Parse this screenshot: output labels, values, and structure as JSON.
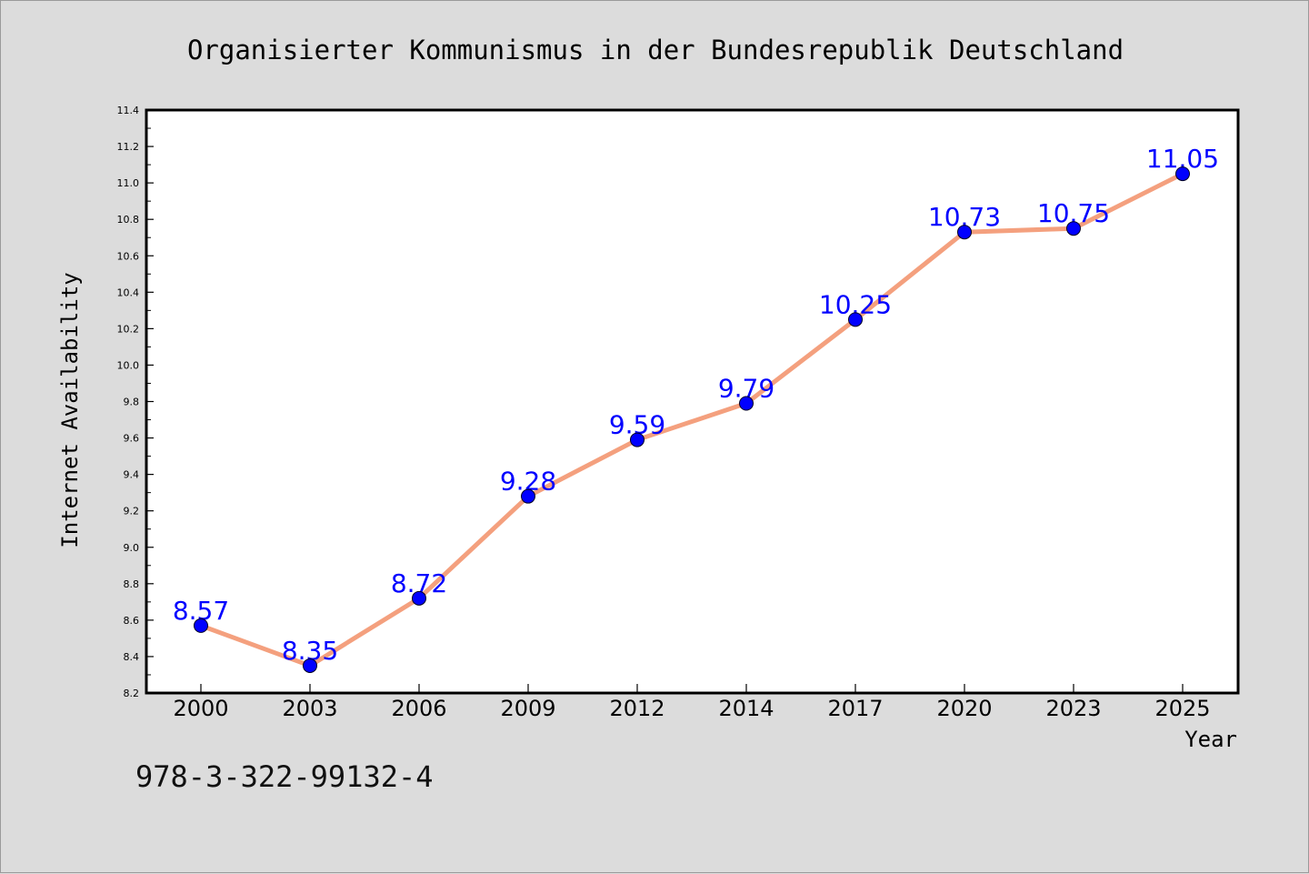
{
  "colors": {
    "background": "#dcdcdc",
    "plot_background": "#ffffff",
    "line": "#f4a07e",
    "marker": "#0000ff",
    "data_label": "#0000ff",
    "axis": "#000000"
  },
  "footer": {
    "isbn": "978-3-322-99132-4"
  },
  "chart_data": {
    "type": "line",
    "title": "Organisierter Kommunismus in der Bundesrepublik Deutschland",
    "xlabel": "Year",
    "ylabel": "Internet Availability",
    "categories": [
      "2000",
      "2003",
      "2006",
      "2009",
      "2012",
      "2014",
      "2017",
      "2020",
      "2023",
      "2025"
    ],
    "series": [
      {
        "values": [
          8.57,
          8.35,
          8.72,
          9.28,
          9.59,
          9.79,
          10.25,
          10.73,
          10.75,
          11.05
        ],
        "labels": [
          "8.57",
          "8.35",
          "8.72",
          "9.28",
          "9.59",
          "9.79",
          "10.25",
          "10.73",
          "10.75",
          "11.05"
        ]
      }
    ],
    "ylim": [
      8.2,
      11.4
    ],
    "yticks": [
      "8.2",
      "8.4",
      "8.6",
      "8.8",
      "9.0",
      "9.2",
      "9.4",
      "9.6",
      "9.8",
      "10.0",
      "10.2",
      "10.4",
      "10.6",
      "10.8",
      "11.0",
      "11.2",
      "11.4"
    ],
    "grid": false,
    "legend": "none"
  }
}
